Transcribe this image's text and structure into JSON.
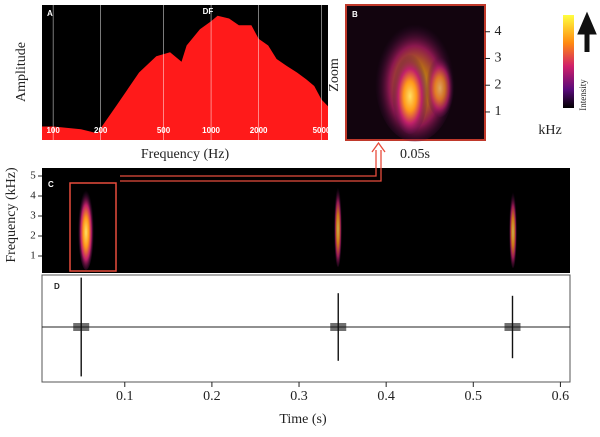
{
  "chart_data": [
    {
      "type": "area",
      "label": "A",
      "annotation": "DF",
      "xlabel": "Frequency (Hz)",
      "ylabel": "Amplitude",
      "xscale": "log",
      "x": [
        85,
        100,
        150,
        190,
        250,
        350,
        450,
        550,
        650,
        700,
        850,
        1000,
        1100,
        1300,
        1500,
        1800,
        2000,
        2300,
        2600,
        3000,
        3500,
        4000,
        4500,
        5000,
        5500
      ],
      "values": [
        10,
        10,
        8,
        5,
        25,
        50,
        62,
        65,
        58,
        70,
        82,
        88,
        92,
        90,
        85,
        85,
        75,
        70,
        60,
        55,
        50,
        45,
        40,
        30,
        25
      ],
      "color": "#ff1a1a",
      "xlim": [
        85,
        5500
      ],
      "ylim": [
        0,
        100
      ],
      "xticks": [
        100,
        200,
        500,
        1000,
        2000,
        5000
      ],
      "grid": true
    },
    {
      "type": "spectrogram",
      "label": "B",
      "ylabel": "Zoom",
      "xlabel": "0.05s",
      "y2label": "kHz",
      "colorbar_label": "Intensity",
      "y2lim": [
        0,
        5
      ],
      "y2ticks": [
        1,
        2,
        3,
        4
      ]
    },
    {
      "type": "spectrogram",
      "label": "C",
      "ylabel": "Frequency (kHz)",
      "ylim": [
        0.15,
        5.4
      ],
      "yticks": [
        1,
        2,
        3,
        4,
        5
      ]
    },
    {
      "type": "waveform",
      "label": "D",
      "xlabel": "Time (s)",
      "x": [
        0.05,
        0.345,
        0.545
      ],
      "values": [
        0.95,
        0.65,
        0.6
      ],
      "color": "#111111",
      "ylim": [
        -1,
        1
      ],
      "xlim": [
        0.005,
        0.611
      ],
      "xticks": [
        0.1,
        0.2,
        0.3,
        0.4,
        0.5,
        0.6
      ]
    }
  ]
}
